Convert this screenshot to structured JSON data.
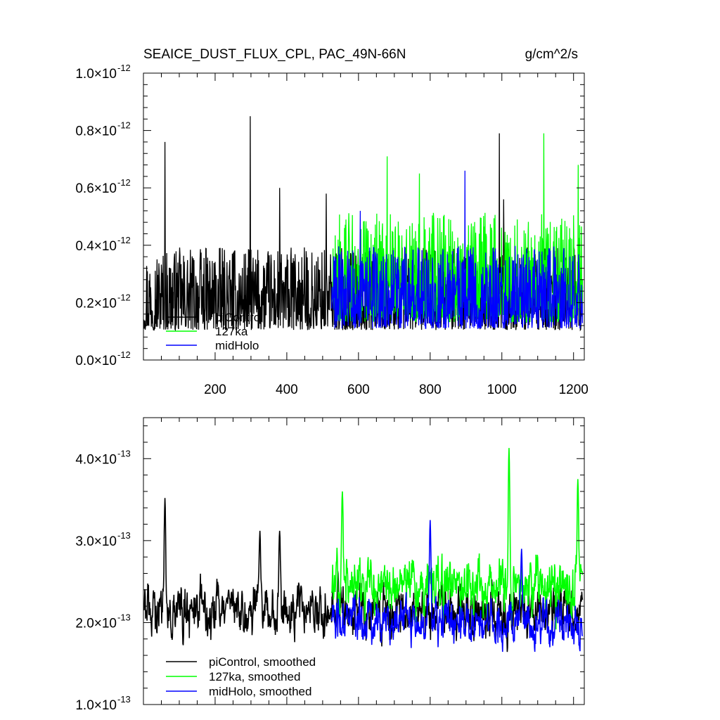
{
  "chart_data": [
    {
      "type": "line",
      "title": "SEAICE_DUST_FLUX_CPL, PAC_49N-66N",
      "units": "g/cm^2/s",
      "xlim": [
        0,
        1230
      ],
      "ylim": [
        0.0,
        1e-12
      ],
      "x_ticks": [
        200,
        400,
        600,
        800,
        1000,
        1200
      ],
      "x_tick_labels": [
        "200",
        "400",
        "600",
        "800",
        "1000",
        "1200"
      ],
      "y_ticks": [
        0.0,
        2e-13,
        4e-13,
        6e-13,
        8e-13,
        1e-12
      ],
      "y_tick_labels": [
        {
          "mantissa": "0.0",
          "exponent": "-12"
        },
        {
          "mantissa": "0.2",
          "exponent": "-12"
        },
        {
          "mantissa": "0.4",
          "exponent": "-12"
        },
        {
          "mantissa": "0.6",
          "exponent": "-12"
        },
        {
          "mantissa": "0.8",
          "exponent": "-12"
        },
        {
          "mantissa": "1.0",
          "exponent": "-12"
        }
      ],
      "legend": "bottom-left",
      "grid": false,
      "series": [
        {
          "name": "piControl",
          "color": "#000000",
          "x_range": [
            1,
            1225
          ],
          "mean": 1.9e-13,
          "spread": 9e-14,
          "peaks": [
            [
              60,
              7.6e-13
            ],
            [
              298,
              8.5e-13
            ],
            [
              380,
              6e-13
            ],
            [
              510,
              5.8e-13
            ],
            [
              993,
              7.9e-13
            ],
            [
              1005,
              5.6e-13
            ]
          ]
        },
        {
          "name": "127ka",
          "color": "#00ff00",
          "x_range": [
            525,
            1225
          ],
          "mean": 2.4e-13,
          "spread": 1.2e-13,
          "peaks": [
            [
              680,
              7.1e-13
            ],
            [
              1117,
              7.9e-13
            ],
            [
              1213,
              6.8e-13
            ],
            [
              770,
              6.5e-13
            ]
          ]
        },
        {
          "name": "midHolo",
          "color": "#0000ff",
          "x_range": [
            525,
            1225
          ],
          "mean": 2e-13,
          "spread": 9e-14,
          "peaks": [
            [
              897,
              6.6e-13
            ],
            [
              605,
              5.2e-13
            ]
          ]
        }
      ]
    },
    {
      "type": "line",
      "xlim": [
        0,
        1230
      ],
      "ylim": [
        1e-13,
        4.5e-13
      ],
      "x_ticks": [
        200,
        400,
        600,
        800,
        1000,
        1200
      ],
      "x_tick_labels": [],
      "y_ticks": [
        1e-13,
        2e-13,
        3e-13,
        4e-13
      ],
      "y_tick_labels": [
        {
          "mantissa": "1.0",
          "exponent": "-13"
        },
        {
          "mantissa": "2.0",
          "exponent": "-13"
        },
        {
          "mantissa": "3.0",
          "exponent": "-13"
        },
        {
          "mantissa": "4.0",
          "exponent": "-13"
        }
      ],
      "legend": "bottom-left",
      "grid": false,
      "series": [
        {
          "name": "piControl, smoothed",
          "color": "#000000",
          "x_range": [
            1,
            1225
          ],
          "mean": 2.15e-13,
          "spread": 4.5e-14,
          "peaks": [
            [
              60,
              3.52e-13
            ],
            [
              325,
              3.12e-13
            ],
            [
              380,
              3.12e-13
            ],
            [
              440,
              2.45e-13
            ]
          ]
        },
        {
          "name": "127ka, smoothed",
          "color": "#00ff00",
          "x_range": [
            525,
            1225
          ],
          "mean": 2.45e-13,
          "spread": 5e-14,
          "peaks": [
            [
              555,
              3.6e-13
            ],
            [
              1020,
              4.13e-13
            ],
            [
              1212,
              3.75e-13
            ]
          ]
        },
        {
          "name": "midHolo, smoothed",
          "color": "#0000ff",
          "x_range": [
            525,
            1225
          ],
          "mean": 2e-13,
          "spread": 4e-14,
          "peaks": [
            [
              800,
              3.25e-13
            ],
            [
              1055,
              2.9e-13
            ]
          ]
        }
      ]
    }
  ]
}
